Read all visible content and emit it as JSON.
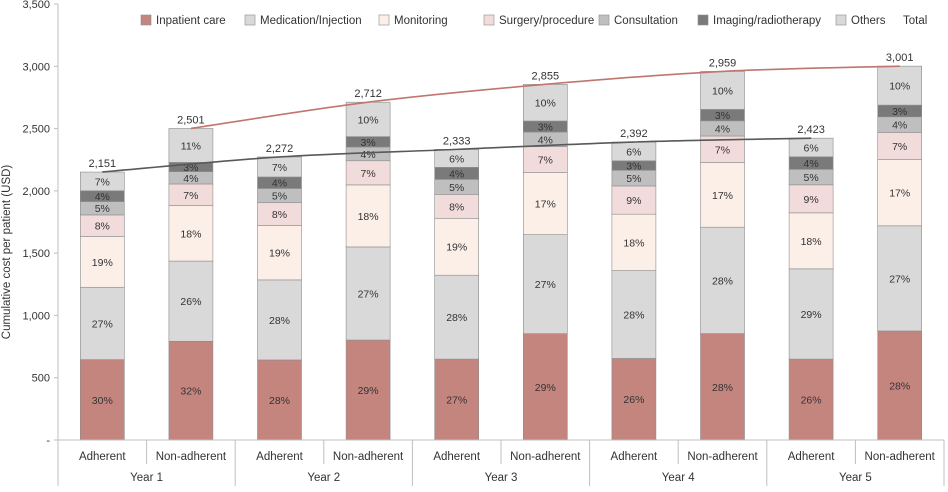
{
  "chart_data": {
    "type": "bar",
    "stacked": true,
    "title": "",
    "xlabel": "",
    "ylabel": "Cumulative cost per patient (USD)",
    "ylim": [
      0,
      3500
    ],
    "yticks": [
      0,
      500,
      1000,
      1500,
      2000,
      2500,
      3000,
      3500
    ],
    "ytick_labels": [
      "-",
      "500",
      "1,000",
      "1,500",
      "2,000",
      "2,500",
      "3,000",
      "3,500"
    ],
    "grid": false,
    "legend_position": "top",
    "groups": [
      "Year 1",
      "Year 2",
      "Year 3",
      "Year 4",
      "Year 5"
    ],
    "categories": [
      "Adherent",
      "Non-adherent",
      "Adherent",
      "Non-adherent",
      "Adherent",
      "Non-adherent",
      "Adherent",
      "Non-adherent",
      "Adherent",
      "Non-adherent"
    ],
    "totals": [
      2151,
      2501,
      2272,
      2712,
      2333,
      2855,
      2392,
      2959,
      2423,
      3001
    ],
    "total_labels": [
      "2,151",
      "2,501",
      "2,272",
      "2,712",
      "2,333",
      "2,855",
      "2,392",
      "2,959",
      "2,423",
      "3,001"
    ],
    "series": [
      {
        "name": "Inpatient care",
        "color": "#c4857f",
        "shares": [
          30,
          32,
          28,
          29,
          27,
          29,
          26,
          28,
          26,
          28
        ],
        "labels": [
          "30%",
          "32%",
          "28%",
          "29%",
          "27%",
          "29%",
          "26%",
          "28%",
          "26%",
          "28%"
        ]
      },
      {
        "name": "Medication/Injection",
        "color": "#d9d9d9",
        "shares": [
          27,
          26,
          28,
          27,
          28,
          27,
          28,
          28,
          29,
          27
        ],
        "labels": [
          "27%",
          "26%",
          "28%",
          "27%",
          "28%",
          "27%",
          "28%",
          "28%",
          "29%",
          "27%"
        ]
      },
      {
        "name": "Monitoring",
        "color": "#fcefe8",
        "shares": [
          19,
          18,
          19,
          18,
          19,
          17,
          18,
          17,
          18,
          17
        ],
        "labels": [
          "19%",
          "18%",
          "19%",
          "18%",
          "19%",
          "17%",
          "18%",
          "17%",
          "18%",
          "17%"
        ]
      },
      {
        "name": "Surgery/procedure",
        "color": "#f2dcdb",
        "shares": [
          8,
          7,
          8,
          7,
          8,
          7,
          9,
          7,
          9,
          7
        ],
        "labels": [
          "8%",
          "7%",
          "8%",
          "7%",
          "8%",
          "7%",
          "9%",
          "7%",
          "9%",
          "7%"
        ]
      },
      {
        "name": "Consultation",
        "color": "#bfbfbf",
        "shares": [
          5,
          4,
          5,
          4,
          5,
          4,
          5,
          4,
          5,
          4
        ],
        "labels": [
          "5%",
          "4%",
          "5%",
          "4%",
          "5%",
          "4%",
          "5%",
          "4%",
          "5%",
          "4%"
        ]
      },
      {
        "name": "Imaging/radiotherapy",
        "color": "#7a7a7a",
        "shares": [
          4,
          3,
          4,
          3,
          4,
          3,
          3,
          3,
          4,
          3
        ],
        "labels": [
          "4%",
          "3%",
          "4%",
          "3%",
          "4%",
          "3%",
          "3%",
          "3%",
          "4%",
          "3%"
        ]
      },
      {
        "name": "Others",
        "color": "#d9d9d9",
        "shares": [
          7,
          11,
          7,
          10,
          6,
          10,
          6,
          10,
          6,
          10
        ],
        "labels": [
          "7%",
          "11%",
          "7%",
          "10%",
          "6%",
          "10%",
          "6%",
          "10%",
          "6%",
          "10%"
        ]
      }
    ],
    "total_lines": [
      {
        "name": "Total",
        "group": "Adherent",
        "color": "#595959"
      },
      {
        "name": "Total",
        "group": "Non-adherent",
        "color": "#c0756f"
      }
    ],
    "legend_total_label": "Total"
  }
}
